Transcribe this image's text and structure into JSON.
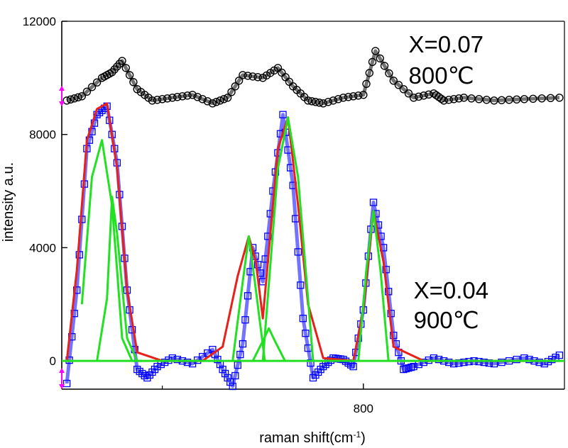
{
  "chart_data": {
    "type": "line",
    "xlabel_main": "raman shift(cm",
    "xlabel_sup": "-1",
    "xlabel_close": ")",
    "ylabel": "intensity a.u.",
    "x_ticks": [
      {
        "value": 800,
        "label": "800"
      }
    ],
    "y_ticks": [
      {
        "value": 0,
        "label": "0"
      },
      {
        "value": 4000,
        "label": "4000"
      },
      {
        "value": 8000,
        "label": "8000"
      },
      {
        "value": 12000,
        "label": "12000"
      }
    ],
    "xlim": [
      500,
      1000
    ],
    "ylim": [
      -1000,
      12000
    ],
    "minor_x_tick": 600,
    "grid": false,
    "colors": {
      "x007_markers": "#000000",
      "x004_markers": "#0000ff",
      "fit": "#e8201a",
      "components": "#22e022",
      "axis_arrows": "#ff00ff"
    },
    "annotations": [
      {
        "id": "x007-label",
        "text": "X=0.07",
        "x": 845,
        "y": 10900
      },
      {
        "id": "x007-temp",
        "text": "800℃",
        "x": 845,
        "y": 9800
      },
      {
        "id": "x004-label",
        "text": "X=0.04",
        "x": 850,
        "y": 2200
      },
      {
        "id": "x004-temp",
        "text": "900℃",
        "x": 850,
        "y": 1150
      }
    ],
    "series": [
      {
        "marker": "circle",
        "color": "#000000",
        "x": [
          505,
          520,
          540,
          550,
          560,
          575,
          590,
          610,
          630,
          650,
          665,
          680,
          700,
          715,
          730,
          745,
          760,
          780,
          800,
          812,
          830,
          850,
          870,
          880,
          900,
          930,
          960,
          995
        ],
        "y": [
          9200,
          9350,
          10000,
          10200,
          10600,
          9600,
          9200,
          9300,
          9400,
          9100,
          9300,
          10100,
          10000,
          10350,
          9700,
          9200,
          9100,
          9300,
          9400,
          10950,
          9900,
          9300,
          9450,
          9200,
          9300,
          9200,
          9250,
          9300
        ]
      },
      {
        "marker": "square",
        "color": "#0000ff",
        "x": [
          505,
          515,
          525,
          535,
          545,
          555,
          565,
          575,
          585,
          595,
          610,
          630,
          650,
          660,
          670,
          680,
          690,
          700,
          710,
          720,
          730,
          740,
          750,
          760,
          770,
          780,
          790,
          800,
          810,
          820,
          830,
          840,
          850,
          870,
          890,
          910,
          930,
          960,
          980,
          995
        ],
        "y": [
          -800,
          2500,
          7500,
          8700,
          9000,
          7000,
          2500,
          -300,
          -600,
          -200,
          100,
          -100,
          400,
          -300,
          -900,
          600,
          4000,
          2800,
          6000,
          8700,
          6200,
          1500,
          -600,
          -200,
          100,
          50,
          -200,
          1800,
          5600,
          4000,
          900,
          -300,
          -200,
          100,
          -100,
          0,
          -100,
          100,
          -100,
          200
        ]
      },
      {
        "marker": "none",
        "color": "#e8201a",
        "x": [
          505,
          515,
          525,
          535,
          545,
          555,
          565,
          575,
          600,
          640,
          660,
          675,
          686,
          693,
          700,
          715,
          725,
          735,
          745,
          760,
          790,
          800,
          810,
          820,
          830,
          860,
          995
        ],
        "y": [
          0,
          3200,
          7800,
          8900,
          9100,
          6800,
          2500,
          300,
          0,
          0,
          500,
          3000,
          4400,
          3500,
          1500,
          7500,
          8600,
          5500,
          2000,
          100,
          0,
          1800,
          5300,
          3500,
          500,
          0,
          0
        ]
      },
      {
        "marker": "none",
        "color": "#22e022",
        "x": [
          520,
          530,
          540,
          550,
          555,
          560,
          570,
          580
        ],
        "y": [
          2000,
          6500,
          7800,
          5500,
          3200,
          800,
          0,
          0
        ]
      },
      {
        "marker": "none",
        "color": "#22e022",
        "x": [
          535,
          545,
          550,
          555,
          565,
          575
        ],
        "y": [
          0,
          2200,
          5800,
          4500,
          800,
          0
        ]
      },
      {
        "marker": "none",
        "color": "#22e022",
        "x": [
          670,
          680,
          686,
          692,
          702
        ],
        "y": [
          0,
          2800,
          4400,
          2800,
          0
        ]
      },
      {
        "marker": "none",
        "color": "#22e022",
        "x": [
          690,
          700,
          706,
          712,
          722
        ],
        "y": [
          0,
          700,
          1150,
          700,
          0
        ]
      },
      {
        "marker": "none",
        "color": "#22e022",
        "x": [
          700,
          715,
          725,
          735,
          750
        ],
        "y": [
          0,
          6800,
          8600,
          6500,
          0
        ]
      },
      {
        "marker": "none",
        "color": "#22e022",
        "x": [
          795,
          803,
          810,
          817,
          825
        ],
        "y": [
          0,
          3200,
          5300,
          3200,
          0
        ]
      },
      {
        "marker": "none",
        "color": "#22e022",
        "x": [
          500,
          1000
        ],
        "y": [
          0,
          0
        ]
      }
    ]
  }
}
